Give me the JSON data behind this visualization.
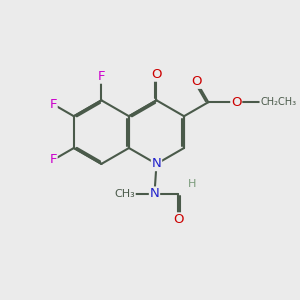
{
  "bg": "#ebebeb",
  "bond_color": "#4a5a4a",
  "N_color": "#2222cc",
  "O_color": "#cc0000",
  "F_color": "#cc00cc",
  "H_color": "#7a9a7a",
  "lw": 1.5,
  "fs": 9.5,
  "fs_sm": 8.0,
  "BL": 0.32,
  "lc": [
    1.02,
    1.68
  ],
  "xlim": [
    0.0,
    3.0
  ],
  "ylim": [
    0.0,
    3.0
  ]
}
